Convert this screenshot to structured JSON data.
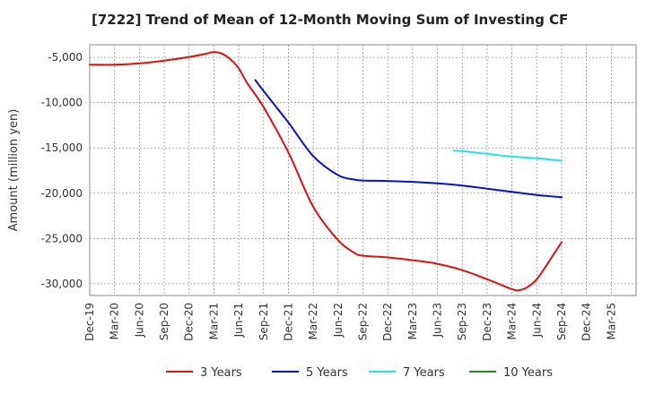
{
  "chart_data": {
    "type": "line",
    "title": "[7222]  Trend of Mean of 12-Month Moving Sum of Investing CF",
    "xlabel": "",
    "ylabel": "Amount (million yen)",
    "x_ticks": [
      "Dec-19",
      "Mar-20",
      "Jun-20",
      "Sep-20",
      "Dec-20",
      "Mar-21",
      "Jun-21",
      "Sep-21",
      "Dec-21",
      "Mar-22",
      "Jun-22",
      "Sep-22",
      "Dec-22",
      "Mar-23",
      "Jun-23",
      "Sep-23",
      "Dec-23",
      "Mar-24",
      "Jun-24",
      "Sep-24",
      "Dec-24",
      "Mar-25"
    ],
    "y_ticks": [
      -5000,
      -10000,
      -15000,
      -20000,
      -25000,
      -30000
    ],
    "y_tick_labels": [
      "-5,000",
      "-10,000",
      "-15,000",
      "-20,000",
      "-25,000",
      "-30,000"
    ],
    "ylim": [
      -31300,
      -3600
    ],
    "grid": true,
    "legend_position": "bottom",
    "series": [
      {
        "name": "3 Years",
        "color": "#dd1111",
        "points": [
          [
            "Dec-19",
            -5800
          ],
          [
            "Mar-20",
            -5800
          ],
          [
            "Jun-20",
            -5650
          ],
          [
            "Sep-20",
            -5350
          ],
          [
            "Dec-20",
            -4950
          ],
          [
            "Feb-21",
            -4600
          ],
          [
            "Mar-21",
            -4400
          ],
          [
            "Apr-21",
            -4600
          ],
          [
            "May-21",
            -5200
          ],
          [
            "Jun-21",
            -6200
          ],
          [
            "Jul-21",
            -7800
          ],
          [
            "Sep-21",
            -10500
          ],
          [
            "Dec-21",
            -15500
          ],
          [
            "Mar-22",
            -21500
          ],
          [
            "Jun-22",
            -25200
          ],
          [
            "Aug-22",
            -26600
          ],
          [
            "Sep-22",
            -26900
          ],
          [
            "Dec-22",
            -27100
          ],
          [
            "Mar-23",
            -27400
          ],
          [
            "Jun-23",
            -27800
          ],
          [
            "Sep-23",
            -28500
          ],
          [
            "Dec-23",
            -29500
          ],
          [
            "Mar-24",
            -30600
          ],
          [
            "Apr-24",
            -30700
          ],
          [
            "May-24",
            -30300
          ],
          [
            "Jun-24",
            -29500
          ],
          [
            "Jul-24",
            -28200
          ],
          [
            "Aug-24",
            -26800
          ],
          [
            "Sep-24",
            -25400
          ]
        ]
      },
      {
        "name": "5 Years",
        "color": "#0a12c8",
        "points": [
          [
            "Aug-21",
            -7500
          ],
          [
            "Sep-21",
            -8700
          ],
          [
            "Dec-21",
            -12200
          ],
          [
            "Mar-22",
            -15900
          ],
          [
            "Jun-22",
            -18000
          ],
          [
            "Aug-22",
            -18500
          ],
          [
            "Sep-22",
            -18600
          ],
          [
            "Dec-22",
            -18650
          ],
          [
            "Mar-23",
            -18750
          ],
          [
            "Jun-23",
            -18900
          ],
          [
            "Sep-23",
            -19150
          ],
          [
            "Dec-23",
            -19500
          ],
          [
            "Mar-24",
            -19850
          ],
          [
            "Jun-24",
            -20200
          ],
          [
            "Sep-24",
            -20450
          ]
        ]
      },
      {
        "name": "7 Years",
        "color": "#22e5e5",
        "points": [
          [
            "Aug-23",
            -15300
          ],
          [
            "Sep-23",
            -15350
          ],
          [
            "Dec-23",
            -15650
          ],
          [
            "Mar-24",
            -15950
          ],
          [
            "Jun-24",
            -16150
          ],
          [
            "Sep-24",
            -16400
          ]
        ]
      },
      {
        "name": "10 Years",
        "color": "#1e8c1e",
        "points": []
      }
    ]
  }
}
